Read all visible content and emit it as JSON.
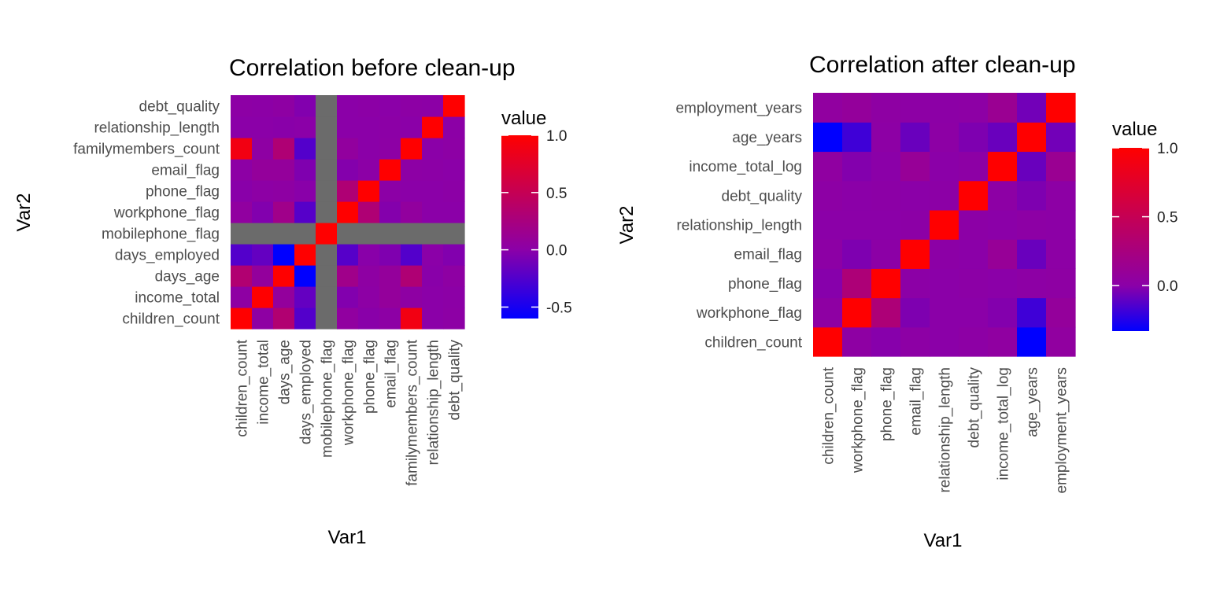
{
  "palette": {
    "low": "#0000FF",
    "mid": "#8B00A8",
    "high": "#FF0000",
    "na": "#6B6B6B"
  },
  "chart_data": [
    {
      "type": "heatmap",
      "title": "Correlation before clean-up",
      "xlabel": "Var1",
      "ylabel": "Var2",
      "legend_title": "value",
      "legend_position": "right",
      "value_range": [
        -0.6,
        1.0
      ],
      "legend_ticks": [
        "1.0",
        "0.5",
        "0.0",
        "-0.5"
      ],
      "legend_tick_values": [
        1.0,
        0.5,
        0.0,
        -0.5
      ],
      "na_color": "#6B6B6B",
      "variables": [
        "children_count",
        "income_total",
        "days_age",
        "days_employed",
        "mobilephone_flag",
        "workphone_flag",
        "phone_flag",
        "email_flag",
        "familymembers_count",
        "relationship_length",
        "debt_quality"
      ],
      "matrix": [
        [
          1.0,
          0.03,
          0.33,
          -0.24,
          null,
          0.05,
          -0.01,
          0.02,
          0.89,
          0.0,
          0.02
        ],
        [
          0.03,
          1.0,
          0.07,
          -0.17,
          null,
          -0.04,
          0.02,
          0.08,
          0.03,
          0.0,
          0.01
        ],
        [
          0.33,
          0.07,
          1.0,
          -0.62,
          null,
          0.18,
          0.03,
          0.08,
          0.31,
          -0.01,
          0.03
        ],
        [
          -0.24,
          -0.17,
          -0.62,
          1.0,
          null,
          -0.23,
          -0.01,
          -0.05,
          -0.24,
          0.0,
          -0.04
        ],
        [
          null,
          null,
          null,
          null,
          1.0,
          null,
          null,
          null,
          null,
          null,
          null
        ],
        [
          0.05,
          -0.04,
          0.18,
          -0.23,
          null,
          1.0,
          0.31,
          -0.03,
          0.06,
          0.0,
          0.0
        ],
        [
          -0.01,
          0.02,
          0.03,
          -0.01,
          null,
          0.31,
          1.0,
          0.01,
          0.0,
          0.0,
          0.01
        ],
        [
          0.02,
          0.08,
          0.08,
          -0.05,
          null,
          -0.03,
          0.01,
          1.0,
          0.02,
          0.01,
          0.0
        ],
        [
          0.89,
          0.03,
          0.31,
          -0.24,
          null,
          0.06,
          0.0,
          0.02,
          1.0,
          0.0,
          0.02
        ],
        [
          0.0,
          0.0,
          -0.01,
          0.0,
          null,
          0.0,
          0.0,
          0.01,
          0.0,
          1.0,
          0.01
        ],
        [
          0.02,
          0.01,
          0.03,
          -0.04,
          null,
          0.0,
          0.01,
          0.0,
          0.02,
          0.01,
          1.0
        ]
      ]
    },
    {
      "type": "heatmap",
      "title": "Correlation after clean-up",
      "xlabel": "Var1",
      "ylabel": "Var2",
      "legend_title": "value",
      "legend_position": "right",
      "value_range": [
        -0.33,
        1.0
      ],
      "legend_ticks": [
        "1.0",
        "0.5",
        "0.0"
      ],
      "legend_tick_values": [
        1.0,
        0.5,
        0.0
      ],
      "variables": [
        "children_count",
        "workphone_flag",
        "phone_flag",
        "email_flag",
        "relationship_length",
        "debt_quality",
        "income_total_log",
        "age_years",
        "employment_years"
      ],
      "matrix": [
        [
          1.0,
          0.03,
          -0.01,
          0.02,
          0.0,
          0.02,
          0.04,
          -0.33,
          0.05
        ],
        [
          0.03,
          1.0,
          0.29,
          -0.03,
          0.0,
          0.0,
          -0.02,
          -0.18,
          0.08
        ],
        [
          -0.01,
          0.29,
          1.0,
          0.01,
          0.0,
          0.01,
          0.0,
          0.02,
          0.03
        ],
        [
          0.02,
          -0.03,
          0.01,
          1.0,
          0.01,
          0.0,
          0.1,
          -0.08,
          0.02
        ],
        [
          0.0,
          0.0,
          0.0,
          0.01,
          1.0,
          0.01,
          0.0,
          0.02,
          0.01
        ],
        [
          0.02,
          0.0,
          0.01,
          0.0,
          0.01,
          1.0,
          0.02,
          -0.03,
          0.02
        ],
        [
          0.04,
          -0.02,
          0.0,
          0.1,
          0.0,
          0.02,
          1.0,
          -0.08,
          0.13
        ],
        [
          -0.33,
          -0.18,
          0.02,
          -0.08,
          0.02,
          -0.03,
          -0.08,
          1.0,
          -0.06
        ],
        [
          0.05,
          0.08,
          0.03,
          0.02,
          0.01,
          0.02,
          0.13,
          -0.06,
          1.0
        ]
      ]
    }
  ]
}
